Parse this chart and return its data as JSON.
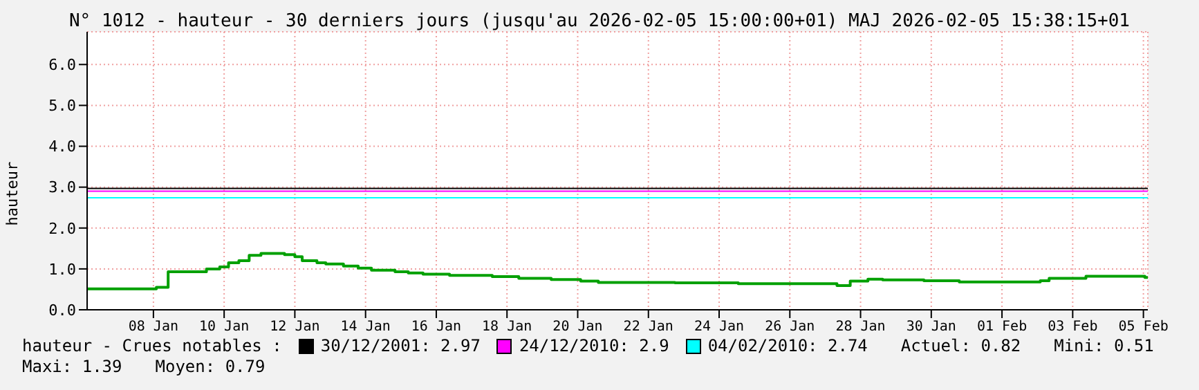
{
  "chart_data": {
    "type": "step",
    "title": "N° 1012 - hauteur - 30 derniers jours (jusqu'au 2026-02-05 15:00:00+01) MAJ 2026-02-05 15:38:15+01",
    "ylabel": "hauteur",
    "x": [
      "2026-01-06T15:00",
      "2026-01-08T14:00",
      "2026-01-08T22:00",
      "2026-01-09T07:00",
      "2026-01-10T00:00",
      "2026-01-10T09:00",
      "2026-01-10T15:00",
      "2026-01-10T22:00",
      "2026-01-11T05:00",
      "2026-01-11T13:00",
      "2026-01-12T05:00",
      "2026-01-12T12:00",
      "2026-01-12T17:00",
      "2026-01-13T03:00",
      "2026-01-13T09:00",
      "2026-01-13T21:00",
      "2026-01-14T07:00",
      "2026-01-14T16:00",
      "2026-01-15T08:00",
      "2026-01-15T17:00",
      "2026-01-16T03:00",
      "2026-01-16T21:00",
      "2026-01-18T02:00",
      "2026-01-18T20:00",
      "2026-01-19T18:00",
      "2026-01-20T14:00",
      "2026-01-21T02:00",
      "2026-01-23T06:00",
      "2026-01-25T01:00",
      "2026-01-27T20:00",
      "2026-01-28T05:00",
      "2026-01-28T17:00",
      "2026-01-29T03:00",
      "2026-01-30T07:00",
      "2026-01-31T07:00",
      "2026-02-02T14:00",
      "2026-02-02T20:00",
      "2026-02-03T21:00",
      "2026-02-05T13:00",
      "2026-02-05T15:00"
    ],
    "series": [
      {
        "color": "#00a000",
        "values": [
          0.51,
          0.55,
          0.93,
          0.93,
          1.0,
          1.05,
          1.15,
          1.2,
          1.33,
          1.38,
          1.35,
          1.3,
          1.2,
          1.15,
          1.12,
          1.07,
          1.02,
          0.97,
          0.93,
          0.9,
          0.87,
          0.84,
          0.81,
          0.77,
          0.74,
          0.7,
          0.67,
          0.66,
          0.64,
          0.59,
          0.7,
          0.75,
          0.73,
          0.71,
          0.68,
          0.71,
          0.77,
          0.82,
          0.79,
          0.79
        ]
      }
    ],
    "xlim": [
      "2026-01-06T15:00",
      "2026-02-05T15:00"
    ],
    "xticks": [
      {
        "value": "2026-01-08T12:00",
        "label": "08 Jan"
      },
      {
        "value": "2026-01-10T12:00",
        "label": "10 Jan"
      },
      {
        "value": "2026-01-12T12:00",
        "label": "12 Jan"
      },
      {
        "value": "2026-01-14T12:00",
        "label": "14 Jan"
      },
      {
        "value": "2026-01-16T12:00",
        "label": "16 Jan"
      },
      {
        "value": "2026-01-18T12:00",
        "label": "18 Jan"
      },
      {
        "value": "2026-01-20T12:00",
        "label": "20 Jan"
      },
      {
        "value": "2026-01-22T12:00",
        "label": "22 Jan"
      },
      {
        "value": "2026-01-24T12:00",
        "label": "24 Jan"
      },
      {
        "value": "2026-01-26T12:00",
        "label": "26 Jan"
      },
      {
        "value": "2026-01-28T12:00",
        "label": "28 Jan"
      },
      {
        "value": "2026-01-30T12:00",
        "label": "30 Jan"
      },
      {
        "value": "2026-02-01T12:00",
        "label": "01 Feb"
      },
      {
        "value": "2026-02-03T12:00",
        "label": "03 Feb"
      },
      {
        "value": "2026-02-05T12:00",
        "label": "05 Feb"
      }
    ],
    "ylim": [
      0,
      6.8
    ],
    "yticks": [
      {
        "value": 0,
        "label": "0.0"
      },
      {
        "value": 1,
        "label": "1.0"
      },
      {
        "value": 2,
        "label": "2.0"
      },
      {
        "value": 3,
        "label": "3.0"
      },
      {
        "value": 4,
        "label": "4.0"
      },
      {
        "value": 5,
        "label": "5.0"
      },
      {
        "value": 6,
        "label": "6.0"
      }
    ],
    "ref_lines": [
      {
        "axis": "y",
        "value": 2.97,
        "label": "30/12/2001: 2.97",
        "color": "#000000"
      },
      {
        "axis": "y",
        "value": 2.9,
        "label": "24/12/2010: 2.9",
        "color": "#ff00ff"
      },
      {
        "axis": "y",
        "value": 2.74,
        "label": "04/02/2010: 2.74",
        "color": "#00ffff"
      }
    ],
    "annotations": [
      "hauteur - Crues notables :",
      "Actuel: 0.82",
      "Mini: 0.51",
      "Maxi: 1.39",
      "Moyen: 0.79"
    ],
    "grid": true,
    "legend": "bottom",
    "line_style": "solid",
    "marker": "none"
  }
}
